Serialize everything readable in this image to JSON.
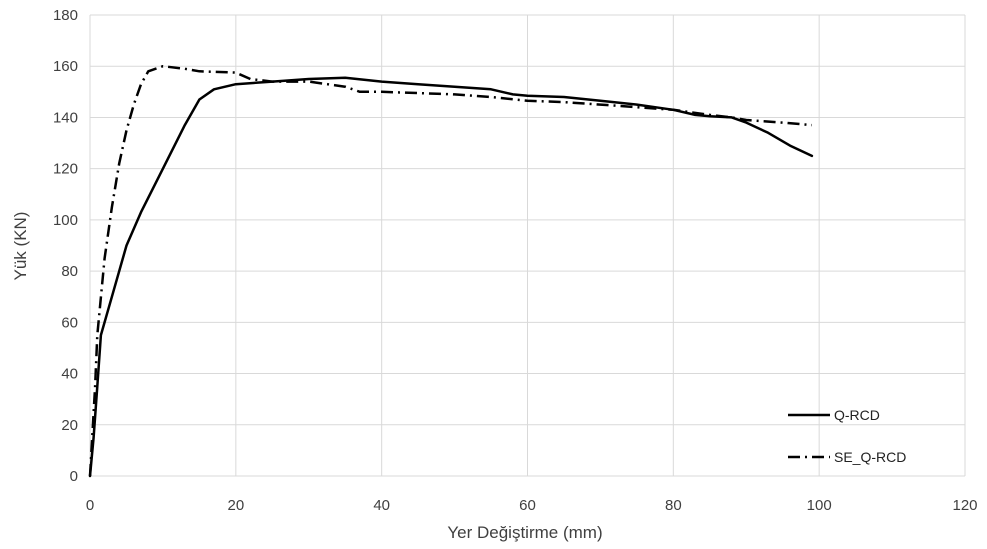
{
  "chart_data": {
    "type": "line",
    "title": "",
    "xlabel": "Yer Değiştirme (mm)",
    "ylabel": "Yük (KN)",
    "xlim": [
      0,
      120
    ],
    "ylim": [
      0,
      180
    ],
    "xticks": [
      0,
      20,
      40,
      60,
      80,
      100,
      120
    ],
    "yticks": [
      0,
      20,
      40,
      60,
      80,
      100,
      120,
      140,
      160,
      180
    ],
    "grid": true,
    "legend_position": "bottom-right",
    "series": [
      {
        "name": "Q-RCD",
        "style": "solid",
        "color": "#000000",
        "points": [
          [
            0,
            0
          ],
          [
            0.5,
            15
          ],
          [
            1,
            35
          ],
          [
            1.5,
            55
          ],
          [
            3,
            70
          ],
          [
            5,
            90
          ],
          [
            7,
            103
          ],
          [
            10,
            120
          ],
          [
            13,
            137
          ],
          [
            15,
            147
          ],
          [
            17,
            151
          ],
          [
            20,
            153
          ],
          [
            25,
            154
          ],
          [
            30,
            155
          ],
          [
            35,
            155.5
          ],
          [
            40,
            154
          ],
          [
            45,
            153
          ],
          [
            50,
            152
          ],
          [
            55,
            151
          ],
          [
            58,
            149
          ],
          [
            60,
            148.5
          ],
          [
            65,
            148
          ],
          [
            70,
            146.5
          ],
          [
            75,
            145
          ],
          [
            80,
            143
          ],
          [
            83,
            141
          ],
          [
            85,
            140.5
          ],
          [
            88,
            140
          ],
          [
            90,
            138
          ],
          [
            93,
            134
          ],
          [
            96,
            129
          ],
          [
            99,
            125
          ]
        ]
      },
      {
        "name": "SE_Q-RCD",
        "style": "dashdot",
        "color": "#000000",
        "points": [
          [
            0,
            0
          ],
          [
            0.3,
            15
          ],
          [
            0.7,
            35
          ],
          [
            1,
            55
          ],
          [
            2,
            85
          ],
          [
            3,
            105
          ],
          [
            4,
            122
          ],
          [
            5,
            135
          ],
          [
            6,
            145
          ],
          [
            7,
            153
          ],
          [
            8,
            158
          ],
          [
            10,
            160
          ],
          [
            13,
            159
          ],
          [
            15,
            158
          ],
          [
            20,
            157.5
          ],
          [
            22,
            155
          ],
          [
            25,
            154
          ],
          [
            30,
            154
          ],
          [
            35,
            152
          ],
          [
            37,
            150
          ],
          [
            40,
            150
          ],
          [
            50,
            149
          ],
          [
            55,
            148
          ],
          [
            60,
            146.5
          ],
          [
            65,
            146
          ],
          [
            70,
            145
          ],
          [
            75,
            144
          ],
          [
            80,
            143
          ],
          [
            85,
            141
          ],
          [
            88,
            140
          ],
          [
            90,
            139
          ],
          [
            95,
            138
          ],
          [
            99,
            137
          ]
        ]
      }
    ]
  }
}
